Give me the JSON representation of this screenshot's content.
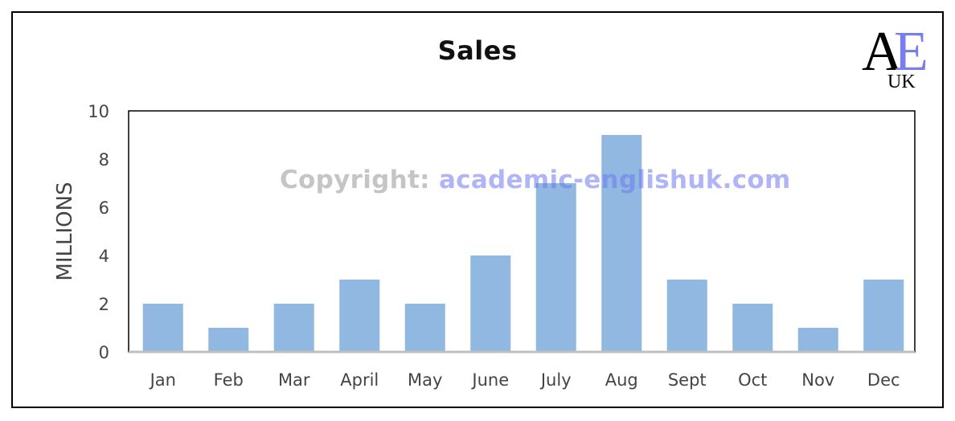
{
  "chart_data": {
    "type": "bar",
    "title": "Sales",
    "xlabel": "",
    "ylabel": "MILLIONS",
    "categories": [
      "Jan",
      "Feb",
      "Mar",
      "April",
      "May",
      "June",
      "July",
      "Aug",
      "Sept",
      "Oct",
      "Nov",
      "Dec"
    ],
    "values": [
      2,
      1,
      2,
      3,
      2,
      4,
      7,
      9,
      3,
      2,
      1,
      3
    ],
    "ylim": [
      0,
      10
    ],
    "yticks": [
      0,
      2,
      4,
      6,
      8,
      10
    ],
    "grid": false,
    "bar_color": "#90b8e0"
  },
  "logo": {
    "big": "AE",
    "small": "UK",
    "colors": {
      "a": "#000000",
      "e": "#7a7df0"
    }
  },
  "watermark": {
    "label": "Copyright:",
    "url": "academic-englishuk.com"
  }
}
